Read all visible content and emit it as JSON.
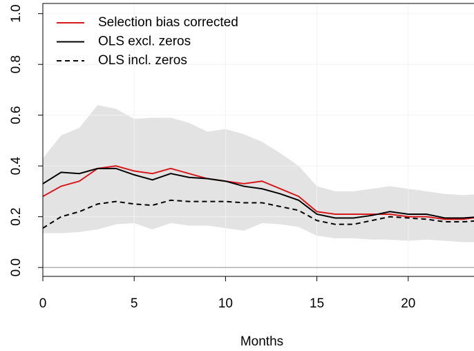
{
  "chart_data": {
    "type": "line",
    "xlabel": "Months",
    "x": [
      0,
      1,
      2,
      3,
      4,
      5,
      6,
      7,
      8,
      9,
      10,
      11,
      12,
      13,
      14,
      15,
      16,
      17,
      18,
      19,
      20,
      21,
      22,
      23,
      24
    ],
    "series": [
      {
        "name": "Selection bias corrected",
        "color": "#d7191c",
        "dash": false,
        "values": [
          0.28,
          0.32,
          0.34,
          0.39,
          0.4,
          0.38,
          0.37,
          0.39,
          0.37,
          0.35,
          0.34,
          0.33,
          0.34,
          0.31,
          0.28,
          0.22,
          0.21,
          0.21,
          0.21,
          0.21,
          0.2,
          0.2,
          0.19,
          0.19,
          0.2
        ]
      },
      {
        "name": "OLS excl. zeros",
        "color": "#000000",
        "dash": false,
        "values": [
          0.33,
          0.375,
          0.37,
          0.39,
          0.39,
          0.365,
          0.345,
          0.37,
          0.355,
          0.35,
          0.34,
          0.32,
          0.31,
          0.29,
          0.265,
          0.21,
          0.195,
          0.195,
          0.205,
          0.22,
          0.21,
          0.21,
          0.195,
          0.195,
          0.2
        ]
      },
      {
        "name": "OLS incl. zeros",
        "color": "#000000",
        "dash": true,
        "values": [
          0.155,
          0.2,
          0.22,
          0.25,
          0.26,
          0.25,
          0.245,
          0.265,
          0.26,
          0.26,
          0.26,
          0.255,
          0.255,
          0.24,
          0.225,
          0.185,
          0.17,
          0.17,
          0.185,
          0.2,
          0.195,
          0.19,
          0.18,
          0.18,
          0.185
        ]
      }
    ],
    "band": {
      "color": "#e3e3e3",
      "upper": [
        0.43,
        0.52,
        0.55,
        0.64,
        0.625,
        0.585,
        0.59,
        0.59,
        0.57,
        0.535,
        0.545,
        0.525,
        0.495,
        0.45,
        0.4,
        0.32,
        0.3,
        0.3,
        0.31,
        0.32,
        0.31,
        0.3,
        0.29,
        0.285,
        0.29
      ],
      "lower": [
        0.135,
        0.135,
        0.14,
        0.15,
        0.17,
        0.175,
        0.15,
        0.175,
        0.165,
        0.165,
        0.155,
        0.145,
        0.175,
        0.17,
        0.16,
        0.125,
        0.115,
        0.115,
        0.11,
        0.11,
        0.105,
        0.11,
        0.105,
        0.1,
        0.1
      ]
    },
    "hline": 0,
    "xlim": [
      0,
      23.6
    ],
    "ylim": [
      -0.035,
      1.04
    ],
    "xticks": [
      0,
      5,
      10,
      15,
      20
    ],
    "yticks": [
      {
        "value": 0,
        "label": "0.0"
      },
      {
        "value": 0.2,
        "label": "0.2"
      },
      {
        "value": 0.4,
        "label": "0.4"
      },
      {
        "value": 0.6,
        "label": "0.6"
      },
      {
        "value": 0.8,
        "label": "0.8"
      },
      {
        "value": 1,
        "label": "1.0"
      }
    ],
    "grid": true,
    "legend": "top-left"
  }
}
